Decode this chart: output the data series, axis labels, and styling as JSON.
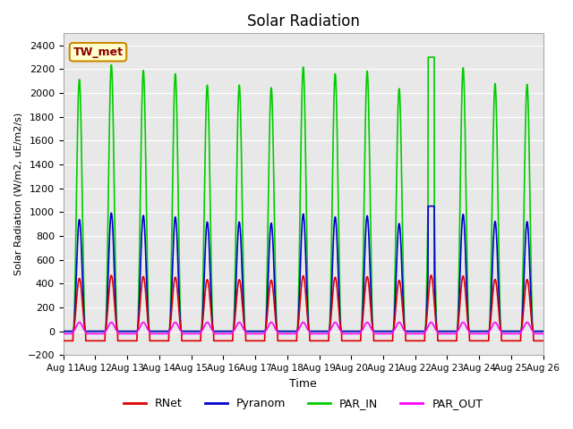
{
  "title": "Solar Radiation",
  "ylabel": "Solar Radiation (W/m2, uE/m2/s)",
  "xlabel": "Time",
  "site_label": "TW_met",
  "ylim": [
    -200,
    2500
  ],
  "yticks": [
    -200,
    0,
    200,
    400,
    600,
    800,
    1000,
    1200,
    1400,
    1600,
    1800,
    2000,
    2200,
    2400
  ],
  "xtick_labels": [
    "Aug 11",
    "Aug 12",
    "Aug 13",
    "Aug 14",
    "Aug 15",
    "Aug 16",
    "Aug 17",
    "Aug 18",
    "Aug 19",
    "Aug 20",
    "Aug 21",
    "Aug 22",
    "Aug 23",
    "Aug 24",
    "Aug 25",
    "Aug 26"
  ],
  "colors": {
    "RNet": "#dd0000",
    "Pyranom": "#0000cc",
    "PAR_IN": "#00cc00",
    "PAR_OUT": "#ff00ff"
  },
  "line_width": 1.2,
  "bg_color": "#e8e8e8",
  "fig_bg": "#ffffff",
  "n_days": 15,
  "points_per_day": 144,
  "rnet_peak": 660,
  "rnet_night": -80,
  "pyranom_peak": 950,
  "par_in_peak": 2140,
  "par_out_peak": 75,
  "par_out_night": -20,
  "aug22_par_in_spike": 2300,
  "aug22_pyranom_spike": 1050
}
